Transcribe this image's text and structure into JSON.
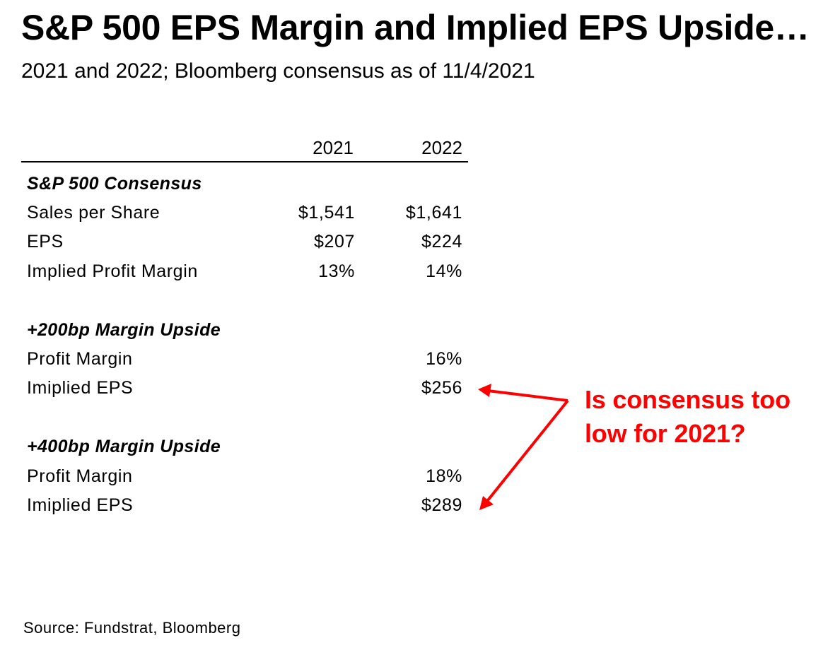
{
  "title": "S&P 500 EPS Margin and Implied EPS Upside…",
  "subtitle": "2021 and 2022; Bloomberg consensus as of 11/4/2021",
  "table": {
    "columns": [
      "2021",
      "2022"
    ],
    "sections": [
      {
        "heading": "S&P 500 Consensus",
        "rows": [
          {
            "label": "Sales per Share",
            "v2021": "$1,541",
            "v2022": "$1,641"
          },
          {
            "label": "EPS",
            "v2021": "$207",
            "v2022": "$224"
          },
          {
            "label": "Implied Profit Margin",
            "v2021": "13%",
            "v2022": "14%"
          }
        ]
      },
      {
        "heading": "+200bp Margin Upside",
        "rows": [
          {
            "label": "Profit Margin",
            "v2021": "",
            "v2022": "16%"
          },
          {
            "label": "Imiplied EPS",
            "v2021": "",
            "v2022": "$256"
          }
        ]
      },
      {
        "heading": "+400bp Margin Upside",
        "rows": [
          {
            "label": "Profit Margin",
            "v2021": "",
            "v2022": "18%"
          },
          {
            "label": "Imiplied EPS",
            "v2021": "",
            "v2022": "$289"
          }
        ]
      }
    ]
  },
  "callout": {
    "line1": "Is consensus too",
    "line2": "low for 2021?",
    "color": "#ff0000"
  },
  "source": "Source: Fundstrat, Bloomberg",
  "chart_data": {
    "type": "table",
    "title": "S&P 500 EPS Margin and Implied EPS Upside…",
    "subtitle": "2021 and 2022; Bloomberg consensus as of 11/4/2021",
    "columns": [
      "2021",
      "2022"
    ],
    "rows": [
      {
        "section": "S&P 500 Consensus",
        "label": "Sales per Share",
        "values": [
          1541,
          1641
        ],
        "unit": "$"
      },
      {
        "section": "S&P 500 Consensus",
        "label": "EPS",
        "values": [
          207,
          224
        ],
        "unit": "$"
      },
      {
        "section": "S&P 500 Consensus",
        "label": "Implied Profit Margin",
        "values": [
          13,
          14
        ],
        "unit": "%"
      },
      {
        "section": "+200bp Margin Upside",
        "label": "Profit Margin",
        "values": [
          null,
          16
        ],
        "unit": "%"
      },
      {
        "section": "+200bp Margin Upside",
        "label": "Imiplied EPS",
        "values": [
          null,
          256
        ],
        "unit": "$"
      },
      {
        "section": "+400bp Margin Upside",
        "label": "Profit Margin",
        "values": [
          null,
          18
        ],
        "unit": "%"
      },
      {
        "section": "+400bp Margin Upside",
        "label": "Imiplied EPS",
        "values": [
          null,
          289
        ],
        "unit": "$"
      }
    ],
    "annotations": [
      "Is consensus too low for 2021?"
    ],
    "source": "Source: Fundstrat, Bloomberg"
  }
}
